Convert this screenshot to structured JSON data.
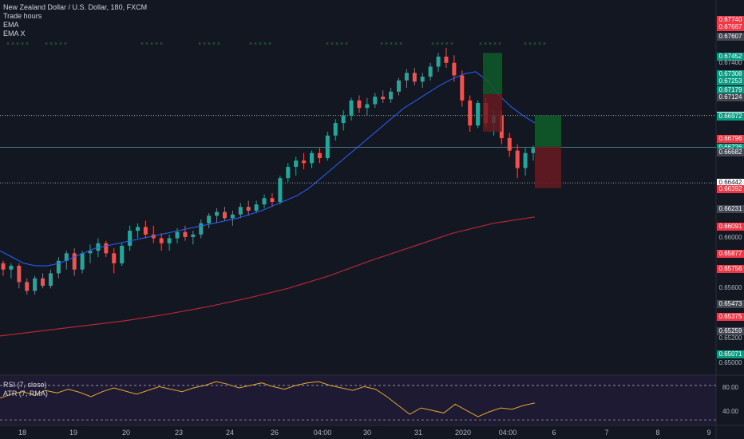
{
  "legend": {
    "title": "New Zealand Dollar / U.S. Dollar, 180, FXCM",
    "indicators": [
      "Trade hours",
      "EMA",
      "EMA X"
    ]
  },
  "rsi_legend": [
    "RSI (7, close)",
    "ATR (7, RMA)"
  ],
  "price_labels": [
    {
      "text": "0.67740",
      "y": 0.6774,
      "color": "#f23645"
    },
    {
      "text": "0.67687",
      "y": 0.67687,
      "color": "#f23645"
    },
    {
      "text": "0.67607",
      "y": 0.67607,
      "color": "#434651"
    },
    {
      "text": "0.67452",
      "y": 0.67452,
      "color": "#089981"
    },
    {
      "text": "0.67400",
      "y": 0.674,
      "color": ""
    },
    {
      "text": "0.67308",
      "y": 0.67308,
      "color": "#089981"
    },
    {
      "text": "0.67253",
      "y": 0.67253,
      "color": "#089981"
    },
    {
      "text": "0.67179",
      "y": 0.67179,
      "color": "#089981"
    },
    {
      "text": "0.67124",
      "y": 0.67124,
      "color": "#434651"
    },
    {
      "text": "0.66980",
      "y": 0.6698,
      "color": "#ffffff"
    },
    {
      "text": "0.66972",
      "y": 0.66972,
      "color": "#089981"
    },
    {
      "text": "0.66796",
      "y": 0.66796,
      "color": "#f23645"
    },
    {
      "text": "0.66726",
      "y": 0.66726,
      "color": "#089981"
    },
    {
      "text": "02:25:01",
      "y": 0.667,
      "color": "#089981"
    },
    {
      "text": "0.66682",
      "y": 0.66682,
      "color": "#434651"
    },
    {
      "text": "0.66442",
      "y": 0.66442,
      "color": "#ffffff"
    },
    {
      "text": "0.66392",
      "y": 0.66392,
      "color": "#f23645"
    },
    {
      "text": "0.66231",
      "y": 0.66231,
      "color": "#434651"
    },
    {
      "text": "0.66091",
      "y": 0.66091,
      "color": "#f23645"
    },
    {
      "text": "0.66000",
      "y": 0.66,
      "color": ""
    },
    {
      "text": "0.65877",
      "y": 0.65877,
      "color": "#f23645"
    },
    {
      "text": "0.65756",
      "y": 0.65756,
      "color": "#f23645"
    },
    {
      "text": "0.65600",
      "y": 0.656,
      "color": ""
    },
    {
      "text": "0.65473",
      "y": 0.65473,
      "color": "#434651"
    },
    {
      "text": "0.65375",
      "y": 0.65375,
      "color": "#f23645"
    },
    {
      "text": "0.65259",
      "y": 0.65259,
      "color": "#434651"
    },
    {
      "text": "0.65200",
      "y": 0.652,
      "color": ""
    },
    {
      "text": "0.65071",
      "y": 0.65071,
      "color": "#089981"
    },
    {
      "text": "0.65000",
      "y": 0.65,
      "color": ""
    }
  ],
  "rsi_labels": [
    "80.00",
    "40.00"
  ],
  "x_labels": [
    "18",
    "19",
    "20",
    "23",
    "24",
    "26",
    "04:00",
    "30",
    "31",
    "2020",
    "04:00",
    "6",
    "7",
    "8",
    "9"
  ],
  "chart_data": {
    "type": "candlestick",
    "title": "New Zealand Dollar / U.S. Dollar, 180, FXCM",
    "ylim": [
      0.6492,
      0.6787
    ],
    "price_levels": [
      0.6698,
      0.66726,
      0.66442
    ],
    "candles": [
      [
        0.658,
        0.6582,
        0.657,
        0.6575
      ],
      [
        0.6575,
        0.658,
        0.6568,
        0.6578
      ],
      [
        0.6578,
        0.658,
        0.656,
        0.6565
      ],
      [
        0.6565,
        0.6568,
        0.6555,
        0.6558
      ],
      [
        0.6558,
        0.657,
        0.6555,
        0.6568
      ],
      [
        0.6568,
        0.6572,
        0.656,
        0.6562
      ],
      [
        0.6562,
        0.6575,
        0.656,
        0.6572
      ],
      [
        0.6572,
        0.6585,
        0.6568,
        0.6582
      ],
      [
        0.6582,
        0.659,
        0.6575,
        0.6588
      ],
      [
        0.6588,
        0.6592,
        0.657,
        0.6575
      ],
      [
        0.6575,
        0.659,
        0.6572,
        0.6588
      ],
      [
        0.6588,
        0.6595,
        0.658,
        0.659
      ],
      [
        0.659,
        0.66,
        0.6585,
        0.6596
      ],
      [
        0.6596,
        0.6598,
        0.6585,
        0.6588
      ],
      [
        0.6588,
        0.6592,
        0.6572,
        0.658
      ],
      [
        0.658,
        0.6596,
        0.6578,
        0.6594
      ],
      [
        0.6594,
        0.661,
        0.659,
        0.6606
      ],
      [
        0.6606,
        0.6612,
        0.66,
        0.6609
      ],
      [
        0.6609,
        0.6614,
        0.66,
        0.6603
      ],
      [
        0.6603,
        0.661,
        0.6596,
        0.66
      ],
      [
        0.66,
        0.6604,
        0.659,
        0.6596
      ],
      [
        0.6596,
        0.6603,
        0.659,
        0.66
      ],
      [
        0.66,
        0.6608,
        0.6596,
        0.6605
      ],
      [
        0.6605,
        0.661,
        0.6598,
        0.6601
      ],
      [
        0.6601,
        0.6606,
        0.6595,
        0.6603
      ],
      [
        0.6603,
        0.6615,
        0.66,
        0.6612
      ],
      [
        0.6612,
        0.662,
        0.6608,
        0.6618
      ],
      [
        0.6618,
        0.6624,
        0.6612,
        0.6621
      ],
      [
        0.6621,
        0.6625,
        0.6614,
        0.6616
      ],
      [
        0.6616,
        0.6622,
        0.661,
        0.6619
      ],
      [
        0.6619,
        0.6628,
        0.6616,
        0.6625
      ],
      [
        0.6625,
        0.663,
        0.6618,
        0.6622
      ],
      [
        0.6622,
        0.663,
        0.662,
        0.6627
      ],
      [
        0.6627,
        0.6635,
        0.6624,
        0.6632
      ],
      [
        0.6632,
        0.6636,
        0.6625,
        0.6629
      ],
      [
        0.6629,
        0.665,
        0.6627,
        0.6648
      ],
      [
        0.6648,
        0.666,
        0.6645,
        0.6657
      ],
      [
        0.6657,
        0.6665,
        0.665,
        0.6662
      ],
      [
        0.6662,
        0.6668,
        0.6655,
        0.666
      ],
      [
        0.666,
        0.667,
        0.6656,
        0.6668
      ],
      [
        0.6668,
        0.6672,
        0.666,
        0.6664
      ],
      [
        0.6664,
        0.6685,
        0.6662,
        0.6682
      ],
      [
        0.6682,
        0.6695,
        0.6678,
        0.6692
      ],
      [
        0.6692,
        0.6702,
        0.6686,
        0.6698
      ],
      [
        0.6698,
        0.6712,
        0.6694,
        0.671
      ],
      [
        0.671,
        0.6714,
        0.67,
        0.6704
      ],
      [
        0.6704,
        0.6712,
        0.6698,
        0.6707
      ],
      [
        0.6707,
        0.6716,
        0.6704,
        0.6713
      ],
      [
        0.6713,
        0.6718,
        0.6708,
        0.6711
      ],
      [
        0.6711,
        0.672,
        0.6708,
        0.6717
      ],
      [
        0.6717,
        0.6728,
        0.6714,
        0.6726
      ],
      [
        0.6726,
        0.6735,
        0.672,
        0.6732
      ],
      [
        0.6732,
        0.6736,
        0.6722,
        0.6725
      ],
      [
        0.6725,
        0.6732,
        0.672,
        0.6729
      ],
      [
        0.6729,
        0.674,
        0.6726,
        0.6737
      ],
      [
        0.6737,
        0.6748,
        0.6733,
        0.6745
      ],
      [
        0.6745,
        0.6752,
        0.6736,
        0.674
      ],
      [
        0.674,
        0.6746,
        0.6725,
        0.673
      ],
      [
        0.673,
        0.6734,
        0.6705,
        0.671
      ],
      [
        0.671,
        0.6714,
        0.6685,
        0.669
      ],
      [
        0.669,
        0.671,
        0.6688,
        0.6708
      ],
      [
        0.6708,
        0.6712,
        0.6688,
        0.6692
      ],
      [
        0.6692,
        0.6702,
        0.6682,
        0.6698
      ],
      [
        0.6698,
        0.6702,
        0.6675,
        0.668
      ],
      [
        0.668,
        0.6684,
        0.6665,
        0.667
      ],
      [
        0.667,
        0.6675,
        0.6648,
        0.6656
      ],
      [
        0.6656,
        0.6672,
        0.665,
        0.6668
      ],
      [
        0.6668,
        0.6674,
        0.6662,
        0.6672
      ]
    ],
    "series": [
      {
        "name": "EMA",
        "color": "#2962ff",
        "values": [
          0.659,
          0.6585,
          0.658,
          0.6578,
          0.6578,
          0.658,
          0.6584,
          0.6588,
          0.6592,
          0.6594,
          0.6596,
          0.6598,
          0.66,
          0.6602,
          0.6604,
          0.6606,
          0.6608,
          0.661,
          0.6612,
          0.6614,
          0.6616,
          0.6619,
          0.6622,
          0.6626,
          0.663,
          0.6634,
          0.664,
          0.6648,
          0.6656,
          0.6664,
          0.6672,
          0.668,
          0.6688,
          0.6696,
          0.6704,
          0.671,
          0.6716,
          0.6722,
          0.6727,
          0.6731,
          0.6733,
          0.6726,
          0.6714,
          0.6705,
          0.6698,
          0.6692
        ]
      },
      {
        "name": "EMA X",
        "color": "#b22833",
        "values": [
          0.6522,
          0.6526,
          0.653,
          0.6534,
          0.6539,
          0.6545,
          0.6552,
          0.656,
          0.657,
          0.6582,
          0.6593,
          0.6604,
          0.6612,
          0.6617
        ]
      }
    ],
    "rsi": [
      60,
      66,
      70,
      64,
      72,
      68,
      74,
      69,
      62,
      70,
      76,
      71,
      66,
      72,
      78,
      74,
      70,
      76,
      80,
      86,
      82,
      76,
      80,
      84,
      78,
      74,
      80,
      84,
      86,
      80,
      76,
      72,
      78,
      74,
      62,
      48,
      34,
      44,
      40,
      36,
      50,
      40,
      30,
      38,
      44,
      42,
      48,
      52
    ]
  }
}
